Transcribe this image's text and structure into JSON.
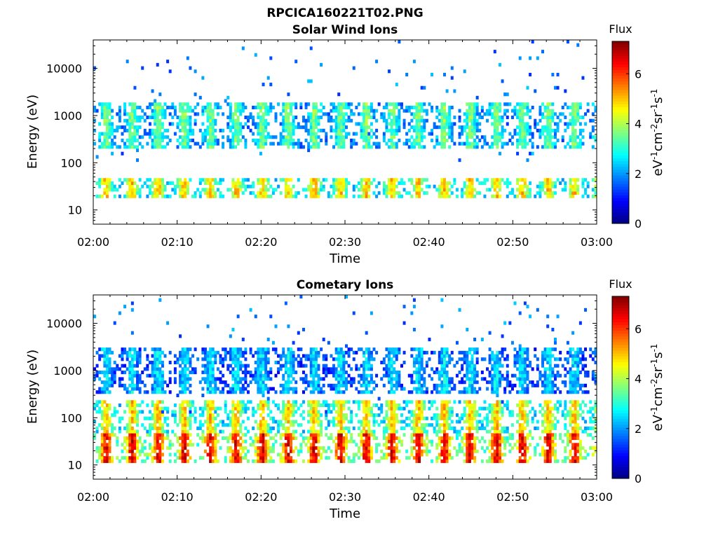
{
  "figure": {
    "title": "RPCICA160221T02.PNG"
  },
  "chart_data": [
    {
      "type": "heatmap",
      "title": "Solar Wind Ions",
      "xlabel": "Time",
      "ylabel": "Energy (eV)",
      "yscale": "log",
      "xlim": [
        "02:00",
        "03:00"
      ],
      "ylim": [
        5,
        40000
      ],
      "x_ticks": [
        "02:00",
        "02:10",
        "02:20",
        "02:30",
        "02:40",
        "02:50",
        "03:00"
      ],
      "y_ticks": [
        "10",
        "100",
        "1000",
        "10000"
      ],
      "colorbar": {
        "label": "Flux",
        "unit_text": "eV-1cm-2sr-1s-1",
        "range": [
          0,
          7.3
        ],
        "ticks": [
          "0",
          "2",
          "4",
          "6"
        ]
      },
      "sweep_period_minutes": 3.1,
      "bands": [
        {
          "energy_eV": [
            18,
            50
          ],
          "flux": 4.5
        },
        {
          "energy_eV": [
            200,
            700
          ],
          "flux": 3.2
        },
        {
          "energy_eV": [
            700,
            2000
          ],
          "flux": 3.3
        }
      ]
    },
    {
      "type": "heatmap",
      "title": "Cometary Ions",
      "xlabel": "Time",
      "ylabel": "Energy (eV)",
      "yscale": "log",
      "xlim": [
        "02:00",
        "03:00"
      ],
      "ylim": [
        5,
        40000
      ],
      "x_ticks": [
        "02:00",
        "02:10",
        "02:20",
        "02:30",
        "02:40",
        "02:50",
        "03:00"
      ],
      "y_ticks": [
        "10",
        "100",
        "1000",
        "10000"
      ],
      "colorbar": {
        "label": "Flux",
        "unit_text": "eV-1cm-2sr-1s-1",
        "range": [
          0,
          7.3
        ],
        "ticks": [
          "0",
          "2",
          "4",
          "6"
        ]
      },
      "sweep_period_minutes": 3.1,
      "bands": [
        {
          "energy_eV": [
            12,
            45
          ],
          "flux": 6.0
        },
        {
          "energy_eV": [
            45,
            250
          ],
          "flux": 4.5
        },
        {
          "energy_eV": [
            300,
            3000
          ],
          "flux": 2.3
        }
      ]
    }
  ]
}
